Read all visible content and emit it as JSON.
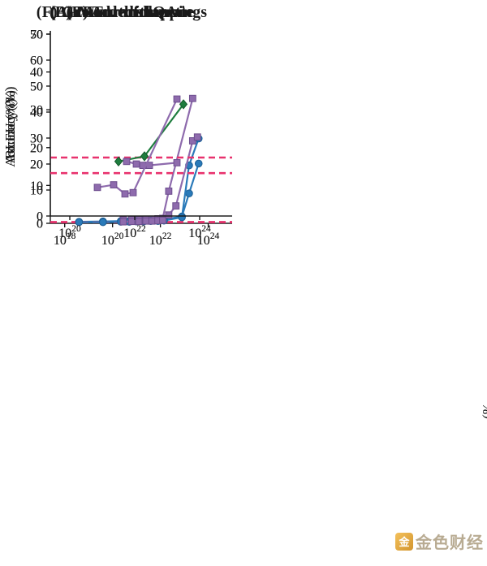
{
  "watermark": {
    "icon_text": "金",
    "brand": "金色财经"
  },
  "edge_fragment": {
    "text": "(%"
  },
  "chart_data": [
    {
      "type": "line",
      "panel": "A",
      "title": "(A) Mod. arithmetic",
      "ylabel": "Accuracy (%)",
      "xlabel": "",
      "xscale": "log10",
      "xlim": [
        17.4,
        25.0
      ],
      "ylim": [
        0,
        50
      ],
      "xticks": [
        18,
        20,
        22,
        24
      ],
      "yticks": [
        0,
        10,
        20,
        30,
        40,
        50
      ],
      "xtick_format": "10^exp",
      "grid": false,
      "legend": "none",
      "baseline": {
        "y": 0.3,
        "color": "#e8326e",
        "style": "dashed"
      },
      "series": [
        {
          "name": "blue-circles",
          "marker": "circle",
          "color": "#2a7ab9",
          "edge": "#1b5e94",
          "points": [
            [
              18.6,
              0.4
            ],
            [
              19.6,
              0.5
            ],
            [
              20.35,
              0.6
            ],
            [
              20.7,
              0.6
            ],
            [
              21.0,
              0.7
            ],
            [
              21.3,
              0.8
            ],
            [
              21.6,
              0.8
            ],
            [
              21.9,
              0.9
            ],
            [
              22.15,
              1.0
            ],
            [
              22.9,
              1.8
            ],
            [
              23.2,
              7.9
            ],
            [
              23.6,
              15.8
            ]
          ]
        },
        {
          "name": "purple-squares",
          "marker": "square",
          "color": "#8e6bad",
          "edge": "#6d4e8e",
          "points": [
            [
              20.45,
              0.9
            ],
            [
              20.8,
              1.0
            ],
            [
              21.1,
              1.0
            ],
            [
              21.4,
              1.1
            ],
            [
              21.65,
              1.1
            ],
            [
              21.9,
              1.2
            ],
            [
              22.1,
              1.3
            ],
            [
              22.35,
              8.5
            ],
            [
              23.35,
              33.0
            ]
          ]
        }
      ]
    },
    {
      "type": "line",
      "panel": "B",
      "title": "(B) IPA transliterate",
      "ylabel": "BLEU (%)",
      "xlabel": "",
      "xscale": "log10",
      "xlim": [
        17.4,
        25.0
      ],
      "ylim": [
        0,
        50
      ],
      "xticks": [
        18,
        20,
        22,
        24
      ],
      "yticks": [
        0,
        10,
        20,
        30,
        40,
        50
      ],
      "xtick_format": "10^exp",
      "grid": false,
      "legend": "none",
      "baseline": {
        "y": 0.3,
        "color": "#e8326e",
        "style": "dashed"
      },
      "series": [
        {
          "name": "blue-circles",
          "marker": "circle",
          "color": "#2a7ab9",
          "edge": "#1b5e94",
          "points": [
            [
              18.6,
              0.3
            ],
            [
              19.6,
              0.3
            ],
            [
              20.35,
              0.4
            ],
            [
              20.7,
              0.4
            ],
            [
              21.0,
              0.5
            ],
            [
              21.3,
              0.5
            ],
            [
              21.6,
              0.6
            ],
            [
              21.9,
              0.6
            ],
            [
              22.15,
              0.7
            ],
            [
              22.9,
              1.6
            ],
            [
              23.2,
              15.3
            ],
            [
              23.6,
              22.4
            ]
          ]
        },
        {
          "name": "purple-squares",
          "marker": "square",
          "color": "#8e6bad",
          "edge": "#6d4e8e",
          "points": [
            [
              20.45,
              0.4
            ],
            [
              20.8,
              0.5
            ],
            [
              21.1,
              0.5
            ],
            [
              21.4,
              0.6
            ],
            [
              21.65,
              0.6
            ],
            [
              21.9,
              0.7
            ],
            [
              22.1,
              0.8
            ],
            [
              22.35,
              2.2
            ],
            [
              22.65,
              4.6
            ],
            [
              23.35,
              21.8
            ],
            [
              23.55,
              22.8
            ]
          ]
        }
      ]
    },
    {
      "type": "line",
      "panel": "E",
      "title": "(E) TruthfulQA",
      "ylabel": "Accuracy (%)",
      "xlabel": "",
      "xscale": "log10",
      "xlim": [
        19.4,
        25.0
      ],
      "ylim": [
        0,
        70
      ],
      "xticks": [
        20,
        22,
        24
      ],
      "yticks": [
        0,
        10,
        20,
        30,
        40,
        50,
        60,
        70
      ],
      "xtick_format": "10^exp",
      "grid": false,
      "legend": "none",
      "baseline": {
        "y": 22.5,
        "color": "#e8326e",
        "style": "dashed"
      },
      "series": [
        {
          "name": "green-diamonds",
          "marker": "diamond",
          "color": "#1e7d3e",
          "edge": "#145a2b",
          "points": [
            [
              21.5,
              21.0
            ],
            [
              22.3,
              23.0
            ],
            [
              23.5,
              43.0
            ]
          ]
        },
        {
          "name": "purple-squares",
          "marker": "square",
          "color": "#8e6bad",
          "edge": "#6d4e8e",
          "points": [
            [
              21.75,
              21.0
            ],
            [
              22.05,
              20.0
            ],
            [
              22.25,
              19.5
            ],
            [
              22.45,
              19.5
            ],
            [
              23.3,
              20.5
            ]
          ]
        }
      ]
    },
    {
      "type": "line",
      "panel": "F",
      "title": "(F) Grounded mappings",
      "ylabel": "Accuracy (%)",
      "xlabel": "",
      "xscale": "log10",
      "xlim": [
        19.4,
        25.0
      ],
      "ylim": [
        0,
        70
      ],
      "xticks": [
        20,
        22,
        24
      ],
      "yticks": [
        0,
        10,
        20,
        30,
        40,
        50,
        60,
        70
      ],
      "xtick_format": "10^exp",
      "grid": false,
      "legend": "none",
      "baseline": {
        "y": 16.5,
        "color": "#e8326e",
        "style": "dashed"
      },
      "series": [
        {
          "name": "purple-squares",
          "marker": "square",
          "color": "#8e6bad",
          "edge": "#6d4e8e",
          "points": [
            [
              20.85,
              11.0
            ],
            [
              21.35,
              12.0
            ],
            [
              21.7,
              8.5
            ],
            [
              21.95,
              9.0
            ],
            [
              23.3,
              45.0
            ]
          ]
        }
      ]
    }
  ]
}
